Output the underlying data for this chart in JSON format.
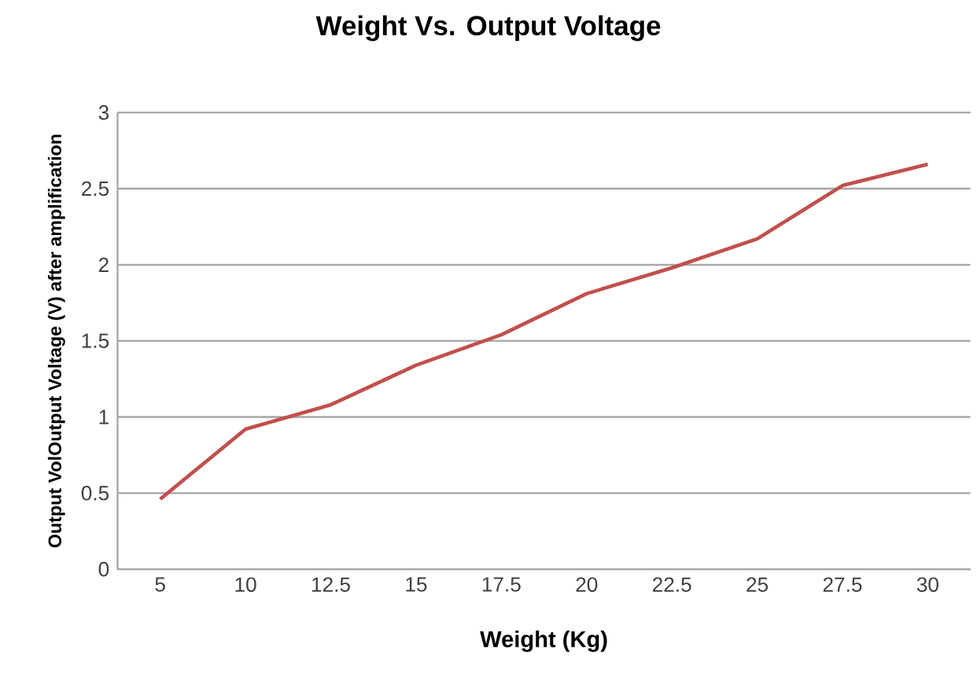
{
  "chart_data": {
    "type": "line",
    "title": "Weight Vs. Output Voltage",
    "xlabel": "Weight (Kg)",
    "ylabel": "Output VolOutput Voltage (V) after amplification",
    "categories": [
      "5",
      "10",
      "12.5",
      "15",
      "17.5",
      "20",
      "22.5",
      "25",
      "27.5",
      "30"
    ],
    "series": [
      {
        "color": "#c0504d",
        "values": [
          0.46,
          0.92,
          1.08,
          1.34,
          1.54,
          1.81,
          1.98,
          2.17,
          2.52,
          2.66
        ]
      }
    ],
    "ylim": [
      0,
      3
    ],
    "yticks": [
      0,
      0.5,
      1,
      1.5,
      2,
      2.5,
      3
    ],
    "grid": "y",
    "marker": "none",
    "line_style": "solid"
  }
}
